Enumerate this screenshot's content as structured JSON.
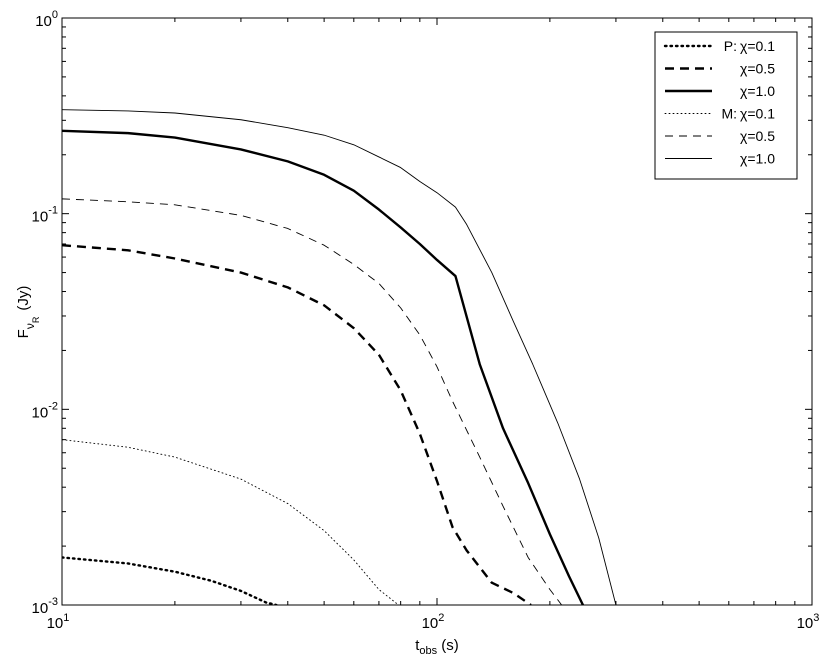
{
  "chart_data": {
    "type": "line",
    "xscale": "log",
    "yscale": "log",
    "xlim": [
      10,
      1000
    ],
    "ylim": [
      0.001,
      1
    ],
    "grid": false,
    "legend_position": "top-right",
    "xlabel": {
      "main": "t",
      "sub": "obs",
      "unit": " (s)"
    },
    "ylabel": {
      "main": "F",
      "sub": "ν",
      "subsub": "R",
      "unit": "(Jy)"
    },
    "x_ticks": [
      {
        "value": 10,
        "base": "10",
        "exp": "1"
      },
      {
        "value": 100,
        "base": "10",
        "exp": "2"
      },
      {
        "value": 1000,
        "base": "10",
        "exp": "3"
      }
    ],
    "y_ticks": [
      {
        "value": 0.001,
        "base": "10",
        "exp": "-3"
      },
      {
        "value": 0.01,
        "base": "10",
        "exp": "-2"
      },
      {
        "value": 0.1,
        "base": "10",
        "exp": "-1"
      },
      {
        "value": 1,
        "base": "10",
        "exp": "0"
      }
    ],
    "series": [
      {
        "prefix": "P:",
        "name": "χ=0.1",
        "style": "dotted",
        "weight": "thick",
        "points": [
          [
            10,
            0.00175
          ],
          [
            15,
            0.00163
          ],
          [
            20,
            0.00148
          ],
          [
            25,
            0.00133
          ],
          [
            30,
            0.00118
          ],
          [
            35,
            0.00103
          ],
          [
            37.3,
            0.001
          ]
        ]
      },
      {
        "prefix": "",
        "name": "χ=0.5",
        "style": "dashed",
        "weight": "thick",
        "points": [
          [
            10,
            0.069
          ],
          [
            15,
            0.065
          ],
          [
            20,
            0.059
          ],
          [
            30,
            0.05
          ],
          [
            40,
            0.042
          ],
          [
            50,
            0.034
          ],
          [
            60,
            0.026
          ],
          [
            70,
            0.019
          ],
          [
            80,
            0.0125
          ],
          [
            90,
            0.0075
          ],
          [
            100,
            0.0043
          ],
          [
            110,
            0.0025
          ],
          [
            120,
            0.0019
          ],
          [
            140,
            0.0013
          ],
          [
            160,
            0.00115
          ],
          [
            178,
            0.001
          ]
        ]
      },
      {
        "prefix": "",
        "name": "χ=1.0",
        "style": "solid",
        "weight": "thick",
        "points": [
          [
            10,
            0.265
          ],
          [
            15,
            0.258
          ],
          [
            20,
            0.245
          ],
          [
            30,
            0.213
          ],
          [
            40,
            0.185
          ],
          [
            50,
            0.158
          ],
          [
            60,
            0.131
          ],
          [
            70,
            0.105
          ],
          [
            80,
            0.085
          ],
          [
            90,
            0.07
          ],
          [
            100,
            0.058
          ],
          [
            112,
            0.048
          ],
          [
            130,
            0.017
          ],
          [
            150,
            0.008
          ],
          [
            175,
            0.0042
          ],
          [
            200,
            0.0023
          ],
          [
            225,
            0.0014
          ],
          [
            245,
            0.001
          ]
        ]
      },
      {
        "prefix": "M:",
        "name": "χ=0.1",
        "style": "dotted",
        "weight": "thin",
        "points": [
          [
            10,
            0.007
          ],
          [
            15,
            0.0064
          ],
          [
            20,
            0.0057
          ],
          [
            30,
            0.0044
          ],
          [
            40,
            0.0033
          ],
          [
            50,
            0.0024
          ],
          [
            60,
            0.0017
          ],
          [
            70,
            0.0012
          ],
          [
            79,
            0.001
          ]
        ]
      },
      {
        "prefix": "",
        "name": "χ=0.5",
        "style": "dashed",
        "weight": "thin",
        "points": [
          [
            10,
            0.119
          ],
          [
            15,
            0.115
          ],
          [
            20,
            0.111
          ],
          [
            30,
            0.098
          ],
          [
            40,
            0.084
          ],
          [
            50,
            0.069
          ],
          [
            60,
            0.055
          ],
          [
            70,
            0.044
          ],
          [
            80,
            0.033
          ],
          [
            90,
            0.024
          ],
          [
            100,
            0.0165
          ],
          [
            110,
            0.011
          ],
          [
            130,
            0.0057
          ],
          [
            150,
            0.0032
          ],
          [
            175,
            0.00175
          ],
          [
            200,
            0.0012
          ],
          [
            215,
            0.001
          ]
        ]
      },
      {
        "prefix": "",
        "name": "χ=1.0",
        "style": "solid",
        "weight": "thin",
        "points": [
          [
            10,
            0.34
          ],
          [
            15,
            0.335
          ],
          [
            20,
            0.327
          ],
          [
            30,
            0.302
          ],
          [
            40,
            0.275
          ],
          [
            50,
            0.252
          ],
          [
            60,
            0.225
          ],
          [
            70,
            0.195
          ],
          [
            80,
            0.172
          ],
          [
            90,
            0.146
          ],
          [
            100,
            0.128
          ],
          [
            112,
            0.108
          ],
          [
            120,
            0.088
          ],
          [
            140,
            0.05
          ],
          [
            160,
            0.028
          ],
          [
            180,
            0.017
          ],
          [
            210,
            0.0085
          ],
          [
            240,
            0.0044
          ],
          [
            270,
            0.0022
          ],
          [
            300,
            0.001
          ]
        ]
      }
    ]
  }
}
